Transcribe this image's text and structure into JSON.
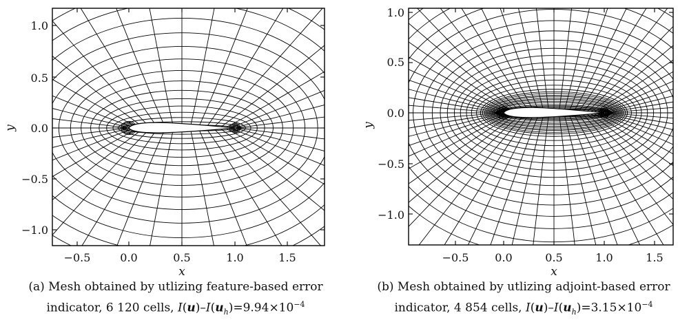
{
  "panels": [
    {
      "id": "a",
      "xlabel": "x",
      "ylabel": "y",
      "xticks": [
        "−0.5",
        "0.0",
        "0.5",
        "1.0",
        "1.5"
      ],
      "yticks": [
        "1.0",
        "0.5",
        "0.0",
        "−0.5",
        "−1.0"
      ],
      "caption": {
        "line1": "(a) Mesh obtained by utlizing feature-based error",
        "line2_prefix": "indicator, 6 120 cells, ",
        "value": "=9.94×10",
        "exponent": "−4"
      }
    },
    {
      "id": "b",
      "xlabel": "x",
      "ylabel": "y",
      "xticks": [
        "−0.5",
        "0.0",
        "0.5",
        "1.0",
        "1.5"
      ],
      "yticks": [
        "1.0",
        "0.5",
        "0.0",
        "−0.5",
        "−1.0"
      ],
      "caption": {
        "line1": "(b) Mesh obtained by utlizing adjoint-based error",
        "line2_prefix": "indicator, 4 854 cells, ",
        "value": "=3.15×10",
        "exponent": "−4"
      }
    }
  ],
  "math": {
    "I": "I",
    "u": "u",
    "uh_sub": "h",
    "dash": "–"
  },
  "colors": {
    "mesh": "#000000",
    "text": "#111111"
  }
}
